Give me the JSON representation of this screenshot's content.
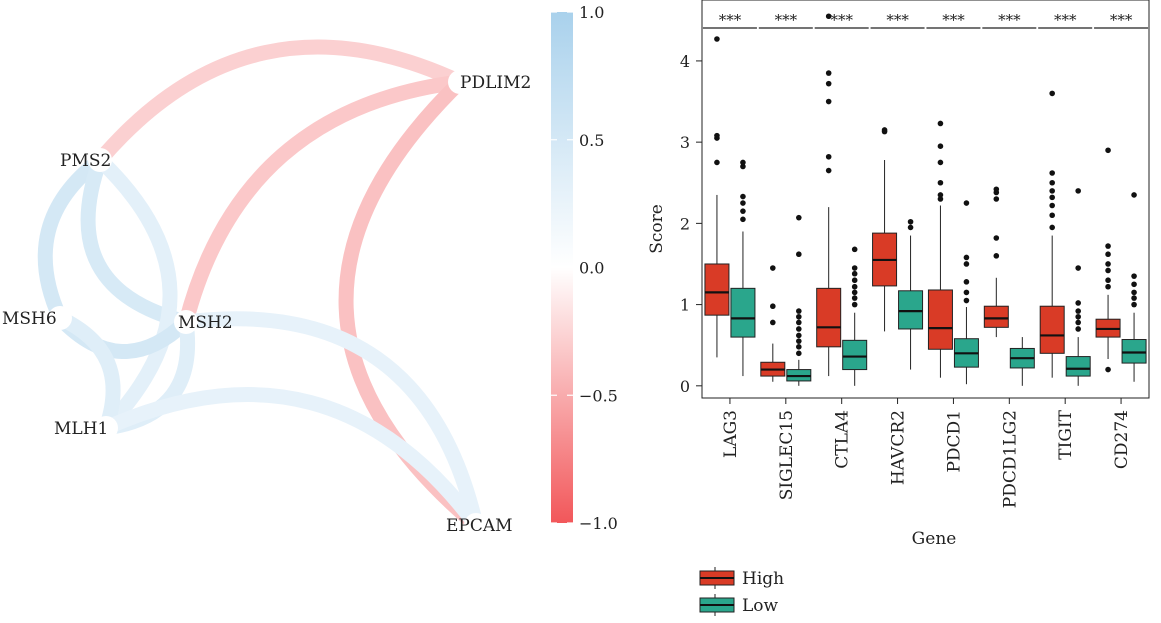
{
  "chart_data": [
    {
      "type": "network",
      "nodes": [
        {
          "id": "PDLIM2",
          "label": "PDLIM2"
        },
        {
          "id": "PMS2",
          "label": "PMS2"
        },
        {
          "id": "MSH6",
          "label": "MSH6"
        },
        {
          "id": "MSH2",
          "label": "MSH2"
        },
        {
          "id": "MLH1",
          "label": "MLH1"
        },
        {
          "id": "EPCAM",
          "label": "EPCAM"
        }
      ],
      "edges": [
        {
          "from": "PMS2",
          "to": "PDLIM2",
          "value": -0.2
        },
        {
          "from": "PDLIM2",
          "to": "MSH2",
          "value": -0.25
        },
        {
          "from": "PDLIM2",
          "to": "EPCAM",
          "value": -0.3
        },
        {
          "from": "MSH2",
          "to": "EPCAM",
          "value": 0.2
        },
        {
          "from": "PMS2",
          "to": "MSH6",
          "value": 0.45
        },
        {
          "from": "PMS2",
          "to": "MSH2",
          "value": 0.4
        },
        {
          "from": "PMS2",
          "to": "MLH1",
          "value": 0.25
        },
        {
          "from": "MSH6",
          "to": "MSH2",
          "value": 0.45
        },
        {
          "from": "MSH6",
          "to": "MLH1",
          "value": 0.3
        },
        {
          "from": "MLH1",
          "to": "MSH2",
          "value": 0.3
        },
        {
          "from": "MLH1",
          "to": "EPCAM",
          "value": 0.2
        }
      ],
      "colorbar": {
        "range": [
          -1.0,
          1.0
        ],
        "ticks": [
          "1.0",
          "0.5",
          "0.0",
          "−0.5",
          "−1.0"
        ],
        "tick_values": [
          1.0,
          0.5,
          0.0,
          -0.5,
          -1.0
        ],
        "color_high": "#a9d1ec",
        "color_mid": "#ffffff",
        "color_low": "#f2575a"
      }
    },
    {
      "type": "boxplot",
      "xlabel": "Gene",
      "ylabel": "Score",
      "ylim": [
        -0.15,
        4.75
      ],
      "yticks": [
        0,
        1,
        2,
        3,
        4
      ],
      "categories": [
        "LAG3",
        "SIGLEC15",
        "CTLA4",
        "HAVCR2",
        "PDCD1",
        "PDCD1LG2",
        "TIGIT",
        "CD274"
      ],
      "significance": [
        "***",
        "***",
        "***",
        "***",
        "***",
        "***",
        "***",
        "***"
      ],
      "legend_position": "bottom-left",
      "series": [
        {
          "name": "High",
          "color": "#d93b26",
          "boxes": [
            {
              "whisker_low": 0.35,
              "q1": 0.87,
              "median": 1.15,
              "q3": 1.5,
              "whisker_high": 2.35,
              "outliers": [
                2.75,
                3.05,
                3.08,
                4.27
              ]
            },
            {
              "whisker_low": 0.05,
              "q1": 0.12,
              "median": 0.2,
              "q3": 0.29,
              "whisker_high": 0.52,
              "outliers": [
                0.78,
                0.98,
                1.45
              ]
            },
            {
              "whisker_low": 0.12,
              "q1": 0.48,
              "median": 0.72,
              "q3": 1.2,
              "whisker_high": 2.2,
              "outliers": [
                2.65,
                2.82,
                3.5,
                3.72,
                3.85,
                4.55
              ]
            },
            {
              "whisker_low": 0.67,
              "q1": 1.23,
              "median": 1.55,
              "q3": 1.88,
              "whisker_high": 2.78,
              "outliers": [
                3.13,
                3.15
              ]
            },
            {
              "whisker_low": 0.1,
              "q1": 0.45,
              "median": 0.71,
              "q3": 1.18,
              "whisker_high": 2.22,
              "outliers": [
                2.3,
                2.35,
                2.5,
                2.75,
                2.95,
                3.23
              ]
            },
            {
              "whisker_low": 0.6,
              "q1": 0.72,
              "median": 0.83,
              "q3": 0.98,
              "whisker_high": 1.33,
              "outliers": [
                1.6,
                1.82,
                2.3,
                2.38,
                2.42
              ]
            },
            {
              "whisker_low": 0.1,
              "q1": 0.4,
              "median": 0.62,
              "q3": 0.98,
              "whisker_high": 1.85,
              "outliers": [
                1.95,
                2.1,
                2.22,
                2.32,
                2.4,
                2.5,
                2.62,
                3.6
              ]
            },
            {
              "whisker_low": 0.33,
              "q1": 0.6,
              "median": 0.7,
              "q3": 0.82,
              "whisker_high": 1.12,
              "outliers": [
                0.2,
                1.22,
                1.3,
                1.42,
                1.5,
                1.62,
                1.72,
                2.9
              ]
            }
          ]
        },
        {
          "name": "Low",
          "color": "#2aa68c",
          "boxes": [
            {
              "whisker_low": 0.12,
              "q1": 0.6,
              "median": 0.83,
              "q3": 1.2,
              "whisker_high": 1.9,
              "outliers": [
                2.05,
                2.15,
                2.25,
                2.33,
                2.7,
                2.75
              ]
            },
            {
              "whisker_low": 0.0,
              "q1": 0.06,
              "median": 0.12,
              "q3": 0.2,
              "whisker_high": 0.32,
              "outliers": [
                0.4,
                0.48,
                0.55,
                0.62,
                0.7,
                0.78,
                0.85,
                0.92,
                1.62,
                2.07
              ]
            },
            {
              "whisker_low": 0.0,
              "q1": 0.2,
              "median": 0.36,
              "q3": 0.56,
              "whisker_high": 0.9,
              "outliers": [
                1.0,
                1.08,
                1.15,
                1.22,
                1.3,
                1.38,
                1.45,
                1.68
              ]
            },
            {
              "whisker_low": 0.2,
              "q1": 0.7,
              "median": 0.92,
              "q3": 1.17,
              "whisker_high": 1.85,
              "outliers": [
                1.95,
                2.02
              ]
            },
            {
              "whisker_low": 0.02,
              "q1": 0.23,
              "median": 0.4,
              "q3": 0.58,
              "whisker_high": 0.97,
              "outliers": [
                1.05,
                1.15,
                1.28,
                1.5,
                1.58,
                2.25
              ]
            },
            {
              "whisker_low": 0.0,
              "q1": 0.22,
              "median": 0.34,
              "q3": 0.46,
              "whisker_high": 0.6,
              "outliers": []
            },
            {
              "whisker_low": 0.0,
              "q1": 0.12,
              "median": 0.21,
              "q3": 0.36,
              "whisker_high": 0.6,
              "outliers": [
                0.7,
                0.78,
                0.85,
                0.92,
                1.02,
                1.45,
                2.4
              ]
            },
            {
              "whisker_low": 0.05,
              "q1": 0.28,
              "median": 0.41,
              "q3": 0.57,
              "whisker_high": 0.9,
              "outliers": [
                1.0,
                1.08,
                1.15,
                1.25,
                1.35,
                2.35
              ]
            }
          ]
        }
      ]
    }
  ]
}
